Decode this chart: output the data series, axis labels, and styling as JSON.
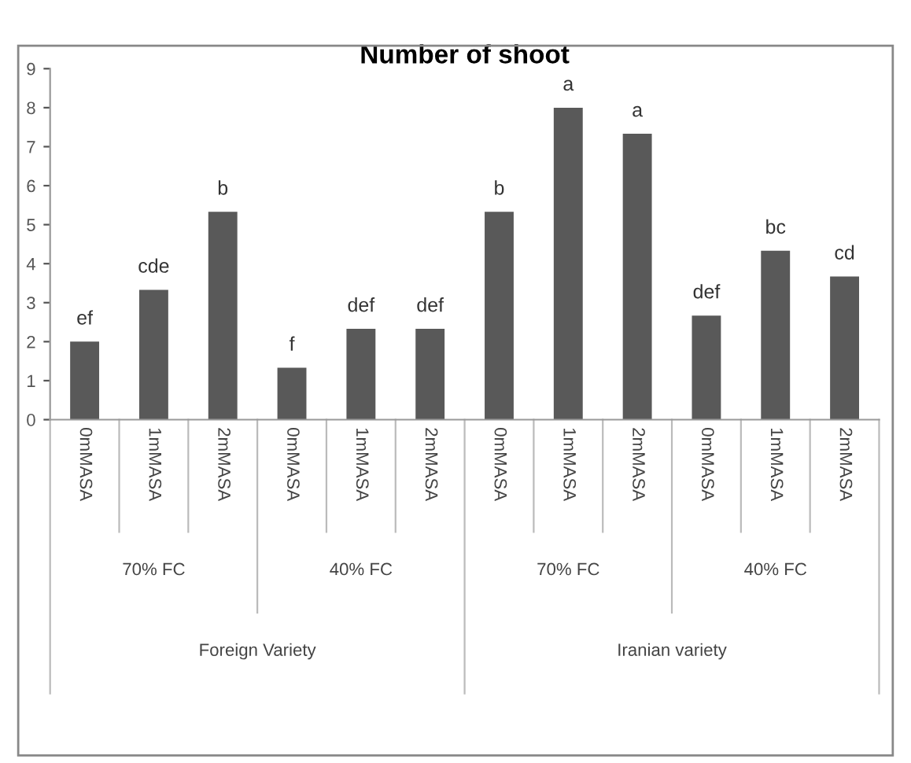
{
  "chart_data": {
    "type": "bar",
    "title": "Number of shoot",
    "categories": [
      "0mMASA",
      "1mMASA",
      "2mMASA",
      "0mMASA",
      "1mMASA",
      "2mMASA",
      "0mMASA",
      "1mMASA",
      "2mMASA",
      "0mMASA",
      "1mMASA",
      "2mMASA"
    ],
    "values": [
      2.0,
      3.33,
      5.33,
      1.33,
      2.33,
      2.33,
      5.33,
      8.0,
      7.33,
      2.67,
      4.33,
      3.67
    ],
    "value_labels": [
      "ef",
      "cde",
      "b",
      "f",
      "def",
      "def",
      "b",
      "a",
      "a",
      "def",
      "bc",
      "cd"
    ],
    "color": "#595959",
    "annotations": [
      "70% FC",
      "40% FC",
      "70% FC",
      "40% FC",
      "Foreign Variety",
      "Iranian variety"
    ],
    "ylim": [
      0,
      9
    ],
    "yticks": [
      0,
      1,
      2,
      3,
      4,
      5,
      6,
      7,
      8,
      9
    ],
    "grid": false,
    "legend": false
  }
}
